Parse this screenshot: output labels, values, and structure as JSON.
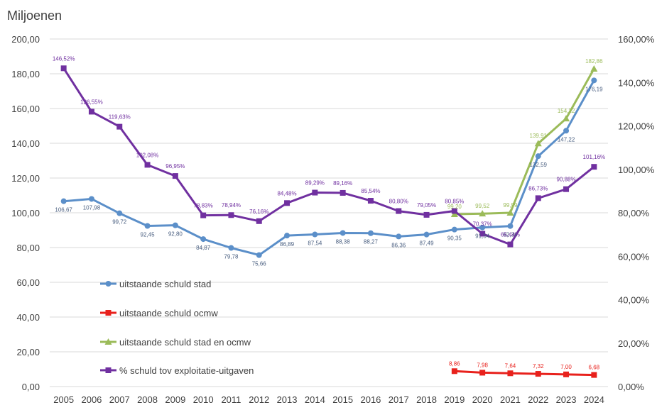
{
  "chart_data": {
    "type": "line",
    "title": "Miljoenen",
    "categories": [
      "2005",
      "2006",
      "2007",
      "2008",
      "2009",
      "2010",
      "2011",
      "2012",
      "2013",
      "2014",
      "2015",
      "2016",
      "2017",
      "2018",
      "2019",
      "2020",
      "2021",
      "2022",
      "2023",
      "2024"
    ],
    "y_left": {
      "range": [
        0,
        200
      ],
      "ticks": [
        "0,00",
        "20,00",
        "40,00",
        "60,00",
        "80,00",
        "100,00",
        "120,00",
        "140,00",
        "160,00",
        "180,00",
        "200,00"
      ]
    },
    "y_right": {
      "range": [
        0,
        160
      ],
      "ticks": [
        "0,00%",
        "20,00%",
        "40,00%",
        "60,00%",
        "80,00%",
        "100,00%",
        "120,00%",
        "140,00%",
        "160,00%"
      ]
    },
    "grid": true,
    "legend_position": "inside-left",
    "series": [
      {
        "name": "uitstaande schuld stad",
        "axis": "left",
        "marker": "circle",
        "color": "#5B8FC9",
        "labelColor": "#4a5f80",
        "values": [
          106.67,
          107.98,
          99.72,
          92.45,
          92.8,
          84.87,
          79.78,
          75.66,
          86.89,
          87.54,
          88.38,
          88.27,
          86.36,
          87.49,
          90.35,
          91.54,
          92.36,
          132.59,
          147.22,
          176.19
        ],
        "labels": [
          "106,67",
          "107,98",
          "99,72",
          "92,45",
          "92,80",
          "84,87",
          "79,78",
          "75,66",
          "86,89",
          "87,54",
          "88,38",
          "88,27",
          "86,36",
          "87,49",
          "90,35",
          "91,54",
          "92,36",
          "132,59",
          "147,22",
          "176,19"
        ]
      },
      {
        "name": "uitstaande schuld ocmw",
        "axis": "left",
        "marker": "square",
        "color": "#E8211C",
        "labelColor": "#E8211C",
        "values": [
          null,
          null,
          null,
          null,
          null,
          null,
          null,
          null,
          null,
          null,
          null,
          null,
          null,
          null,
          8.86,
          7.98,
          7.64,
          7.32,
          7.0,
          6.68
        ],
        "labels": [
          null,
          null,
          null,
          null,
          null,
          null,
          null,
          null,
          null,
          null,
          null,
          null,
          null,
          null,
          "8,86",
          "7,98",
          "7,64",
          "7,32",
          "7,00",
          "6,68"
        ]
      },
      {
        "name": "uitstaande schuld stad en ocmw",
        "axis": "left",
        "marker": "triangle",
        "color": "#9BBB59",
        "labelColor": "#9BBB59",
        "values": [
          null,
          null,
          null,
          null,
          null,
          null,
          null,
          null,
          null,
          null,
          null,
          null,
          null,
          null,
          99.2,
          99.52,
          99.99,
          139.91,
          154.22,
          182.86
        ],
        "labels": [
          null,
          null,
          null,
          null,
          null,
          null,
          null,
          null,
          null,
          null,
          null,
          null,
          null,
          null,
          "99,20",
          "99,52",
          "99,99",
          "139,91",
          "154,22",
          "182,86"
        ]
      },
      {
        "name": "% schuld tov exploitatie-uitgaven",
        "axis": "right",
        "marker": "square",
        "color": "#7030A0",
        "labelColor": "#7030A0",
        "values": [
          146.52,
          126.55,
          119.63,
          102.08,
          96.95,
          78.83,
          78.94,
          76.16,
          84.48,
          89.29,
          89.16,
          85.54,
          80.8,
          79.05,
          80.85,
          70.37,
          65.44,
          86.73,
          90.88,
          101.16
        ],
        "labels": [
          "146,52%",
          "126,55%",
          "119,63%",
          "102,08%",
          "96,95%",
          "78,83%",
          "78,94%",
          "76,16%",
          "84,48%",
          "89,29%",
          "89,16%",
          "85,54%",
          "80,80%",
          "79,05%",
          "80,85%",
          "70,37%",
          "65,44%",
          "86,73%",
          "90,88%",
          "101,16%"
        ]
      }
    ]
  }
}
